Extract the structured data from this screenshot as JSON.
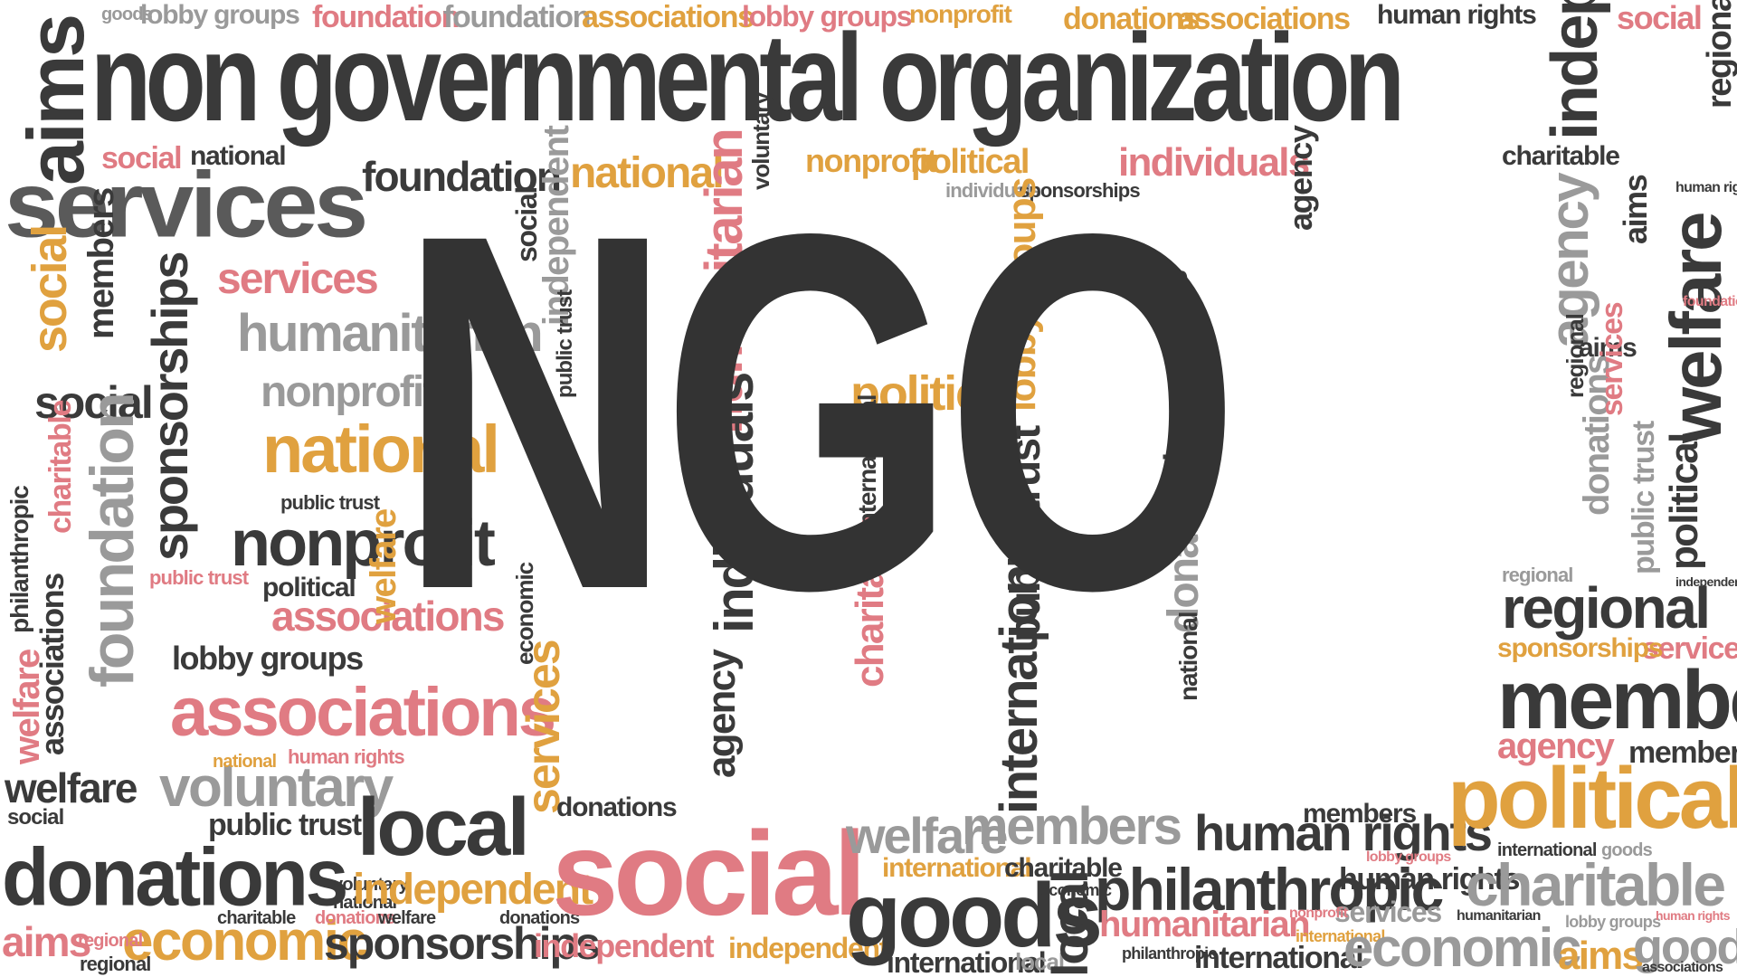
{
  "title": "non governmental organization",
  "main_word": "NGO",
  "colors": {
    "dark": "#3a3a3a",
    "pink": "#e07b83",
    "orange": "#e0a13f",
    "gray": "#9a9a9a"
  },
  "words": {
    "aims": "aims",
    "goods": "goods",
    "lobby_groups": "lobby groups",
    "foundation": "foundation",
    "associations": "associations",
    "nonprofit": "nonprofit",
    "donations": "donations",
    "human_rights": "human rights",
    "social": "social",
    "local": "local",
    "national": "national",
    "services": "services",
    "members": "members",
    "humanitarian": "humanitarian",
    "sponsorships": "sponsorships",
    "philanthropic": "philanthropic",
    "charitable": "charitable",
    "economic": "economic",
    "welfare": "welfare",
    "political": "political",
    "public_trust": "public trust",
    "voluntary": "voluntary",
    "independent": "independent",
    "individuals": "individuals",
    "agency": "agency",
    "international": "international",
    "regional": "regional"
  }
}
